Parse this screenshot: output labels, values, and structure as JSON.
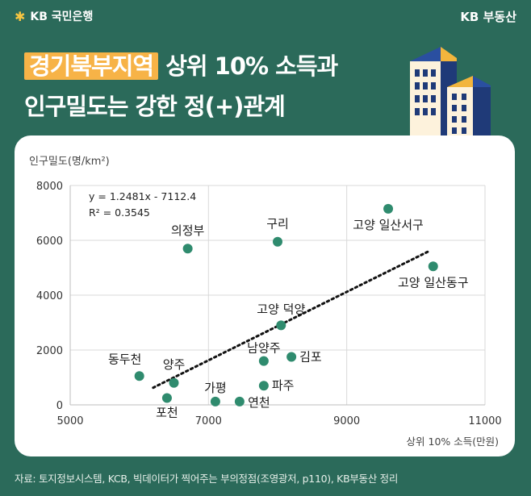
{
  "header": {
    "brand_left": "KB 국민은행",
    "brand_right": "KB 부동산"
  },
  "title": {
    "highlight": "경기북부지역",
    "line1_rest": " 상위 10% 소득과",
    "line2": "인구밀도는 강한 정(+)관계"
  },
  "footer": {
    "source": "자료: 토지정보시스템, KCB, 빅데이터가 찍어주는 부의정점(조영광저, p110), KB부동산 정리"
  },
  "colors": {
    "background": "#2b6a5a",
    "highlight": "#f7b347",
    "point": "#2f8b6e",
    "trend": "#111111"
  },
  "chart_data": {
    "type": "scatter",
    "title": "",
    "xlabel": "상위 10% 소득(만원)",
    "ylabel": "인구밀도(명/km²)",
    "xlim": [
      5000,
      11000
    ],
    "ylim": [
      0,
      8000
    ],
    "x_ticks": [
      5000,
      7000,
      9000,
      11000
    ],
    "y_ticks": [
      0,
      2000,
      4000,
      6000,
      8000
    ],
    "grid": true,
    "equation": "y = 1.2481x - 7112.4",
    "r_squared": "R² = 0.3545",
    "trendline": {
      "slope": 1.2481,
      "intercept": -7112.4,
      "x_start": 6200,
      "x_end": 10200
    },
    "points": [
      {
        "label": "의정부",
        "x": 6700,
        "y": 5700
      },
      {
        "label": "구리",
        "x": 8000,
        "y": 5950
      },
      {
        "label": "고양 일산서구",
        "x": 9600,
        "y": 7150
      },
      {
        "label": "고양 일산동구",
        "x": 10250,
        "y": 5050
      },
      {
        "label": "고양 덕양",
        "x": 8050,
        "y": 2900
      },
      {
        "label": "남양주",
        "x": 7800,
        "y": 1600
      },
      {
        "label": "김포",
        "x": 8200,
        "y": 1750
      },
      {
        "label": "동두천",
        "x": 6000,
        "y": 1050
      },
      {
        "label": "양주",
        "x": 6500,
        "y": 800
      },
      {
        "label": "파주",
        "x": 7800,
        "y": 700
      },
      {
        "label": "포천",
        "x": 6400,
        "y": 250
      },
      {
        "label": "가평",
        "x": 7100,
        "y": 120
      },
      {
        "label": "연천",
        "x": 7450,
        "y": 120
      }
    ]
  }
}
